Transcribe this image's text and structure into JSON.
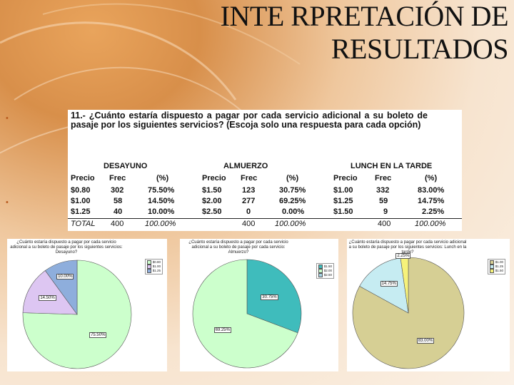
{
  "slide": {
    "title_line1": "INTE RPRETACIÓN DE",
    "title_line2": "RESULTADOS",
    "bullet1": "•",
    "bullet2": "•"
  },
  "table": {
    "question": "11.- ¿Cuánto estaría dispuesto a pagar por cada servicio adicional a su boleto de pasaje por los siguientes servicios? (Escoja solo una respuesta para cada opción)",
    "groups": [
      {
        "name": "DESAYUNO",
        "headers": [
          "Precio",
          "Frec",
          "(%)"
        ],
        "rows": [
          [
            "$0.80",
            "302",
            "75.50%"
          ],
          [
            "$1.00",
            "58",
            "14.50%"
          ],
          [
            "$1.25",
            "40",
            "10.00%"
          ]
        ],
        "total": [
          "TOTAL",
          "400",
          "100.00%"
        ]
      },
      {
        "name": "ALMUERZO",
        "headers": [
          "Precio",
          "Frec",
          "(%)"
        ],
        "rows": [
          [
            "$1.50",
            "123",
            "30.75%"
          ],
          [
            "$2.00",
            "277",
            "69.25%"
          ],
          [
            "$2.50",
            "0",
            "0.00%"
          ]
        ],
        "total": [
          "",
          "400",
          "100.00%"
        ]
      },
      {
        "name": "LUNCH EN LA TARDE",
        "headers": [
          "Precio",
          "Frec",
          "(%)"
        ],
        "rows": [
          [
            "$1.00",
            "332",
            "83.00%"
          ],
          [
            "$1.25",
            "59",
            "14.75%"
          ],
          [
            "$1.50",
            "9",
            "2.25%"
          ]
        ],
        "total": [
          "",
          "400",
          "100.00%"
        ]
      }
    ]
  },
  "chart_data": [
    {
      "type": "pie",
      "title": "¿Cuánto estaría dispuesto a pagar por cada servicio adicional a su boleto de pasaje por los siguientes servicios: Desayuno?",
      "categories": [
        "$0.80",
        "$1.00",
        "$1.25"
      ],
      "values": [
        75.5,
        14.5,
        10.0
      ],
      "labels": [
        "75.50%",
        "14.50%",
        "10.00%"
      ],
      "colors": [
        "#ccffcc",
        "#ddc6f2",
        "#8eaedc"
      ],
      "legend": "top-right"
    },
    {
      "type": "pie",
      "title": "¿Cuánto estaría dispuesto a pagar por cada servicio adicional a su boleto de pasaje por cada servicio: Almuerzo?",
      "categories": [
        "$1.50",
        "$2.00",
        "$2.50"
      ],
      "values": [
        30.75,
        69.25,
        0.0
      ],
      "labels": [
        "30.75%",
        "69.25%",
        ""
      ],
      "colors": [
        "#3fbcbc",
        "#ccffcc",
        "#a8d4e6"
      ],
      "legend": "top-right"
    },
    {
      "type": "pie",
      "title": "¿Cuánto estaría dispuesto a pagar por cada servicio adicional a su boleto de pasaje por los siguientes servicios: Lunch en la tarde?",
      "categories": [
        "$1.00",
        "$1.25",
        "$1.50"
      ],
      "values": [
        83.0,
        14.75,
        2.25
      ],
      "labels": [
        "83.00%",
        "14.75%",
        "2.25%"
      ],
      "colors": [
        "#d6cf94",
        "#c6ecf2",
        "#f6f27a"
      ],
      "legend": "top-right"
    }
  ]
}
